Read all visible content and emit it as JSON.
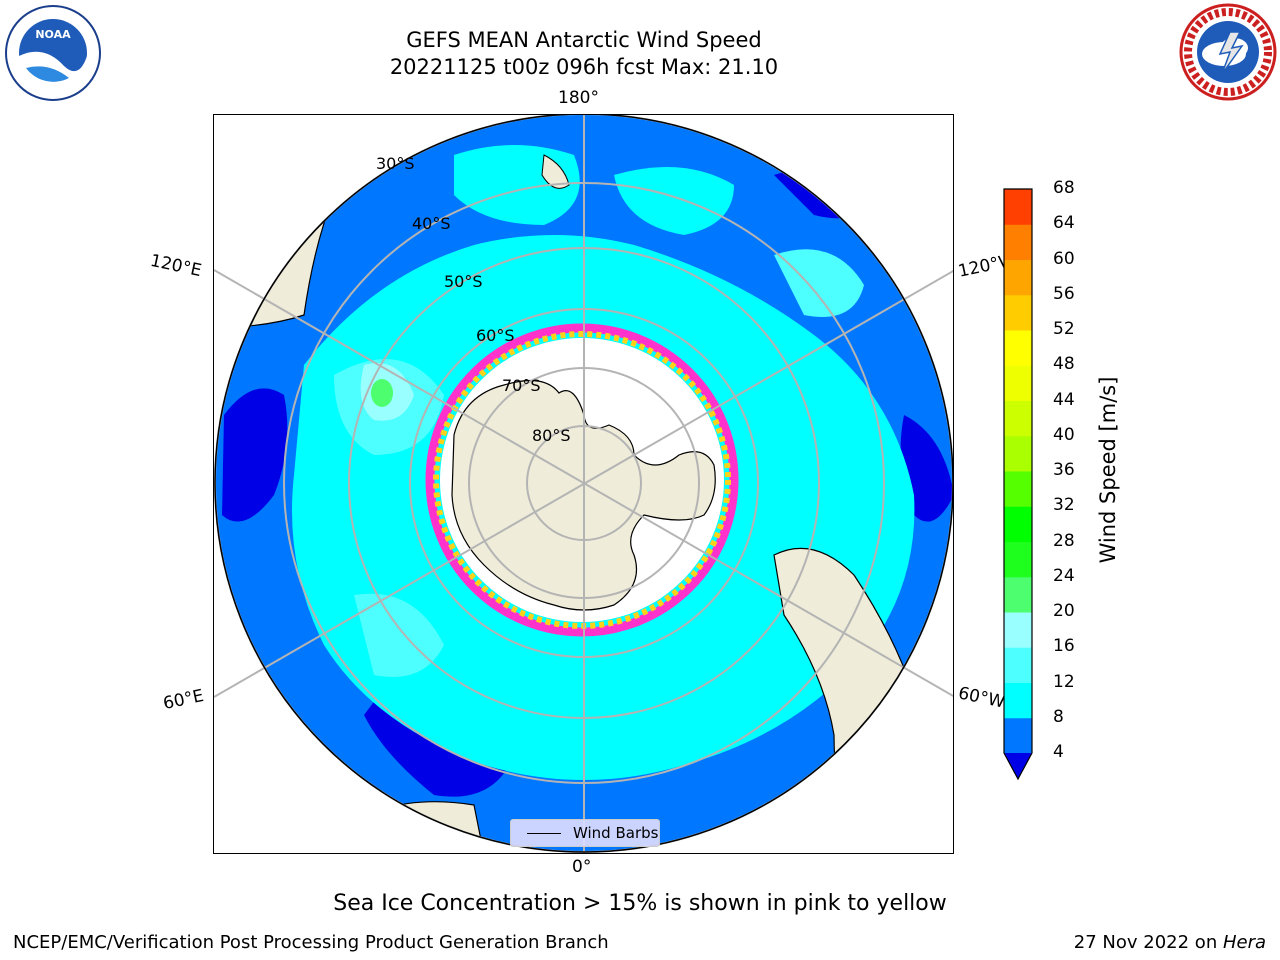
{
  "title": {
    "line1": "GEFS MEAN Antarctic Wind Speed",
    "line2": "20221125 t00z 096h fcst   Max: 21.10"
  },
  "logos": {
    "left": "noaa-logo",
    "right": "nws-logo"
  },
  "map": {
    "projection": "south-polar-stereographic",
    "lon_labels": {
      "top": "180°",
      "bottom": "0°",
      "left_upper": "120°E",
      "left_lower": "60°E",
      "right_upper": "120°W",
      "right_lower": "60°W"
    },
    "lat_labels": [
      "30°S",
      "40°S",
      "50°S",
      "60°S",
      "70°S",
      "80°S"
    ],
    "legend_label": "Wind Barbs",
    "colors": {
      "land": "#efecd9",
      "ocean_low": "#0000e6",
      "wind_4_8": "#0077ff",
      "wind_8_12": "#00ffff",
      "wind_12_16": "#4dffff",
      "wind_16_20": "#99ffff",
      "wind_20_24": "#4dff6e",
      "ice_edge_pink": "#ff33cc",
      "ice_edge_yellow": "#ffd21a",
      "grid": "#b4b4b4"
    }
  },
  "colorbar": {
    "label": "Wind Speed [m/s]",
    "ticks": [
      "4",
      "8",
      "12",
      "16",
      "20",
      "24",
      "28",
      "32",
      "36",
      "40",
      "44",
      "48",
      "52",
      "56",
      "60",
      "64",
      "68"
    ],
    "colors": [
      "#0077ff",
      "#00ffff",
      "#4dffff",
      "#99ffff",
      "#4dff6e",
      "#1eff1e",
      "#00ff00",
      "#55ff00",
      "#aaff00",
      "#ccff00",
      "#eeff00",
      "#ffff00",
      "#ffcc00",
      "#ffa500",
      "#ff7f00",
      "#ff4000",
      "#ff0000"
    ],
    "under_color": "#0000e6"
  },
  "note": "Sea Ice Concentration > 15% is shown in pink to yellow",
  "footer": {
    "left": "NCEP/EMC/Verification Post Processing Product Generation Branch",
    "right_date": "27 Nov 2022 on ",
    "right_host": "Hera"
  }
}
